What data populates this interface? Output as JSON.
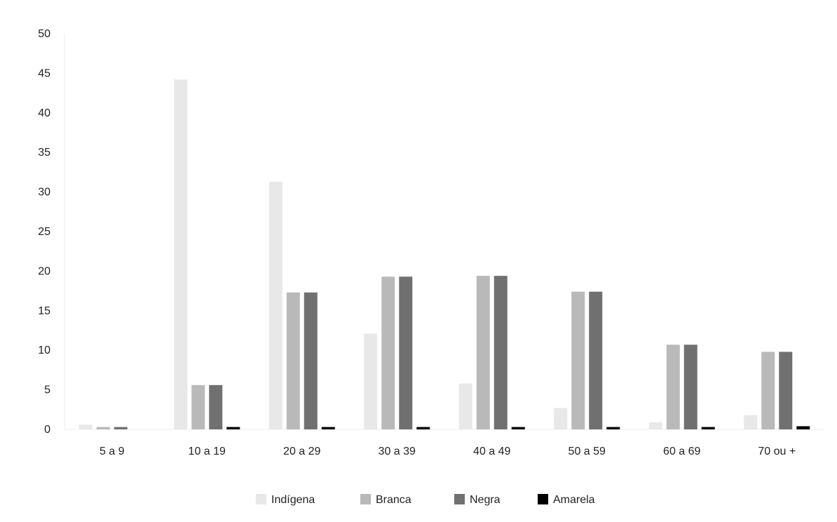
{
  "chart_data": {
    "type": "bar",
    "title": "",
    "xlabel": "",
    "ylabel": "",
    "ylim": [
      0,
      50
    ],
    "yticks": [
      0,
      5,
      10,
      15,
      20,
      25,
      30,
      35,
      40,
      45,
      50
    ],
    "grid": false,
    "legend_position": "bottom",
    "categories": [
      "5 a 9",
      "10 a 19",
      "20 a 29",
      "30 a 39",
      "40 a 49",
      "50 a 59",
      "60 a 69",
      "70 ou +"
    ],
    "series": [
      {
        "name": "Indígena",
        "color": "#e8e8e8",
        "values": [
          0.6,
          44.2,
          31.3,
          12.1,
          5.8,
          2.7,
          0.9,
          1.8
        ]
      },
      {
        "name": "Branca",
        "color": "#b9b9b9",
        "values": [
          0.3,
          5.6,
          17.3,
          19.3,
          19.4,
          17.4,
          10.7,
          9.8
        ]
      },
      {
        "name": "Negra",
        "color": "#707070",
        "values": [
          0.3,
          5.6,
          17.3,
          19.3,
          19.4,
          17.4,
          10.7,
          9.8
        ]
      },
      {
        "name": "Amarela",
        "color": "#000000",
        "values": [
          0,
          0.3,
          0.3,
          0.3,
          0.3,
          0.3,
          0.3,
          0.4
        ]
      }
    ]
  }
}
